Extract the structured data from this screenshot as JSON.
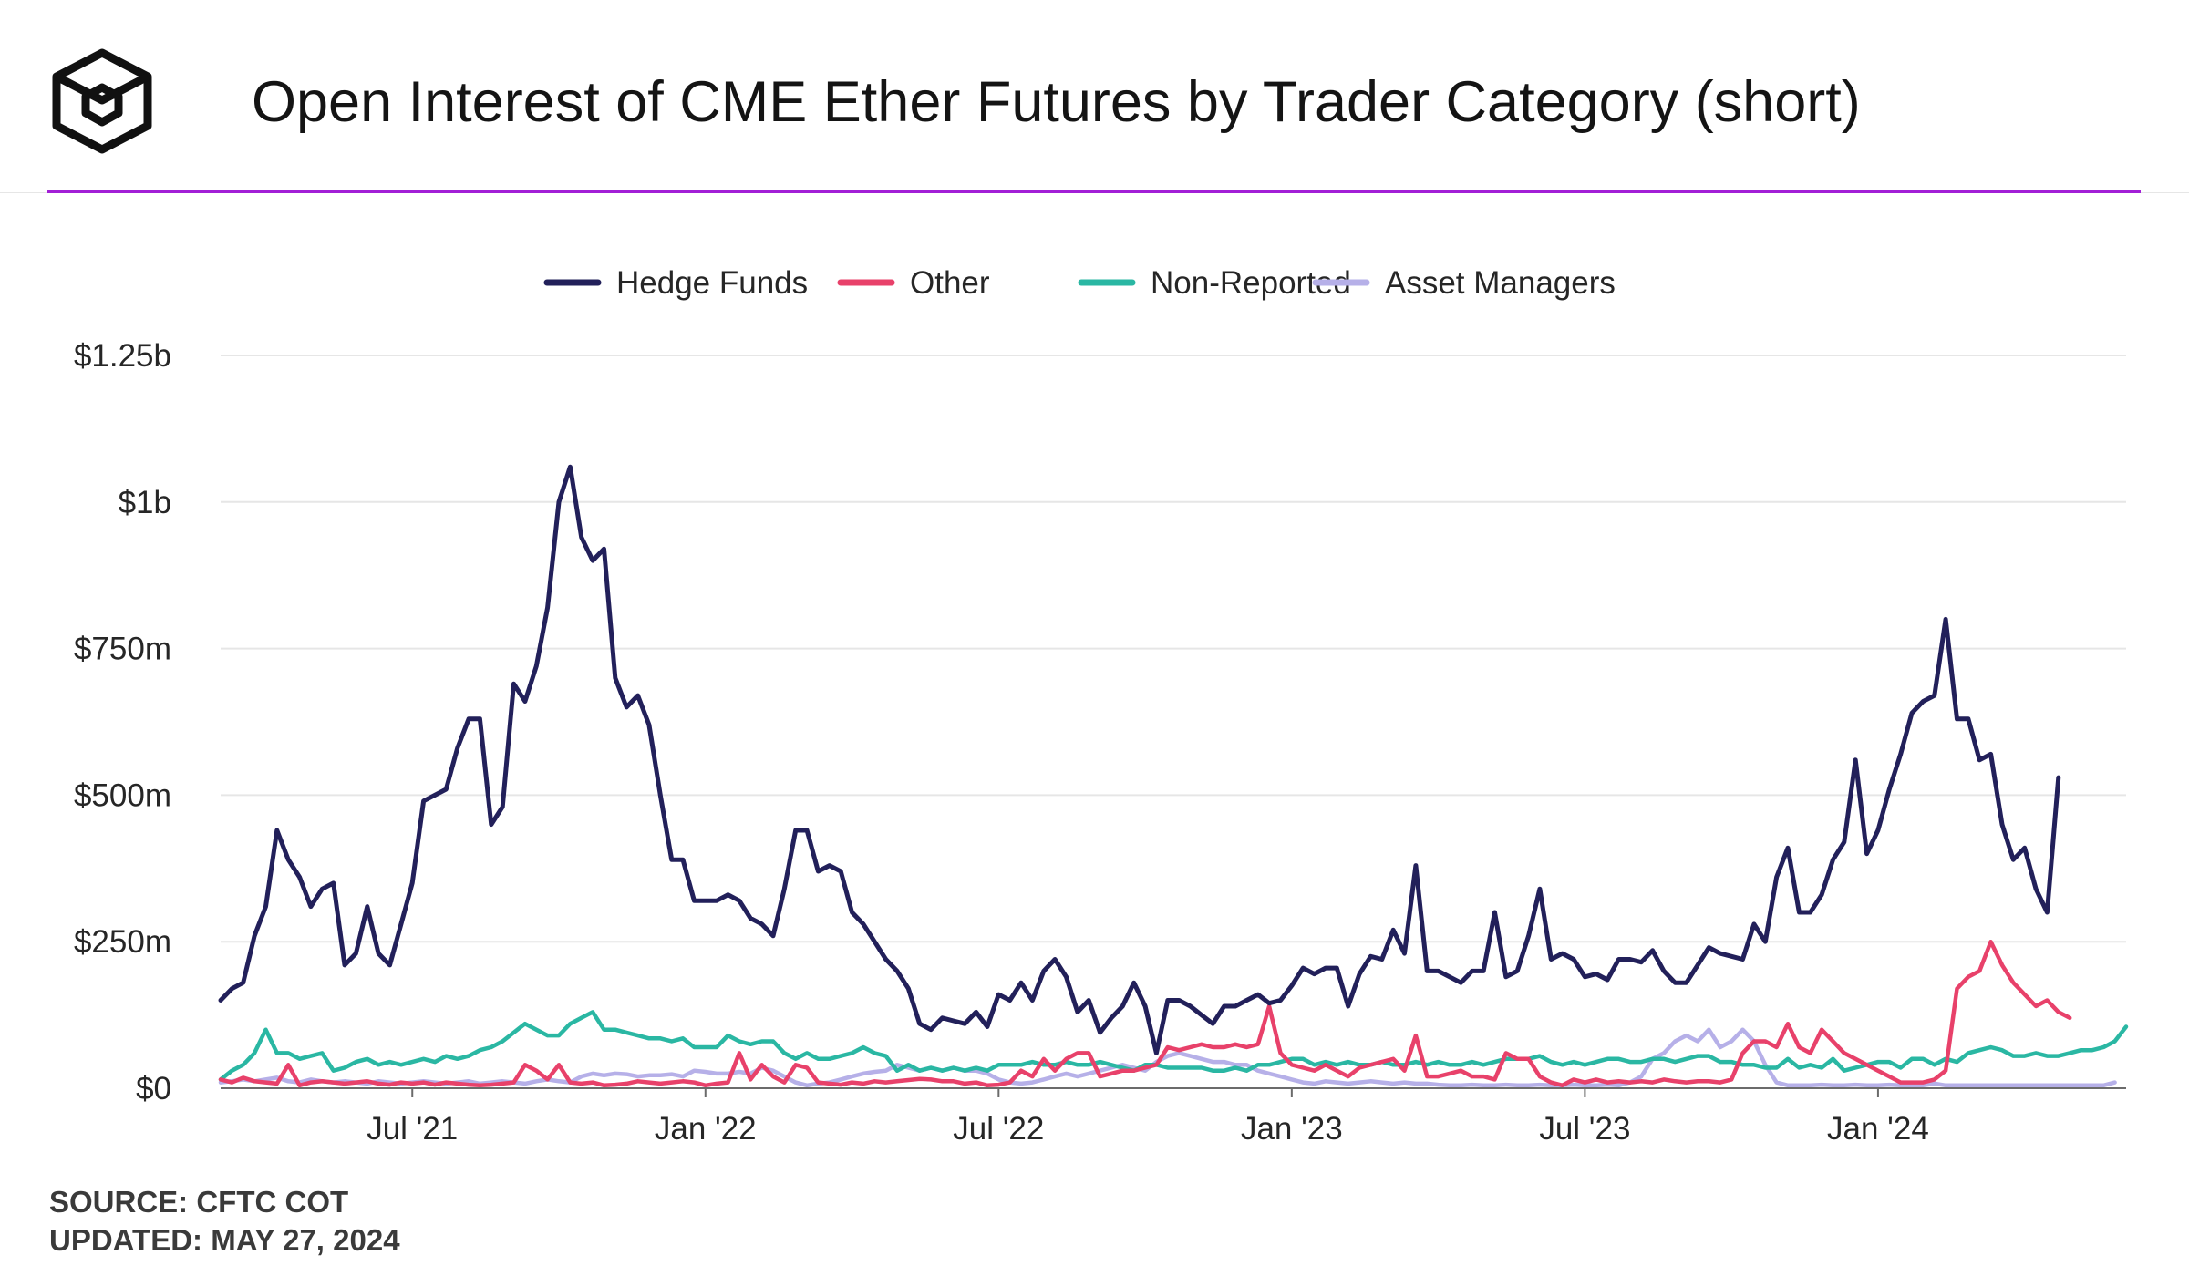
{
  "header": {
    "title": "Open Interest of CME Ether Futures by Trader Category (short)",
    "logo_icon": "the-block-cube-logo",
    "accent_color": "#a21fd6"
  },
  "footer": {
    "source": "SOURCE: CFTC COT",
    "updated": "UPDATED: MAY 27, 2024"
  },
  "chart_data": {
    "type": "line",
    "title": "Open Interest of CME Ether Futures by Trader Category (short)",
    "xlabel": "",
    "ylabel": "",
    "grid": true,
    "legend_position": "top-center",
    "x_start": "2021-03-05",
    "x_step_days": 7,
    "x_range": [
      0,
      169
    ],
    "ylim": [
      0,
      1250
    ],
    "y_unit": "$ millions",
    "y_ticks": [
      0,
      250,
      500,
      750,
      1000,
      1250
    ],
    "y_tick_labels": [
      "$0",
      "$250m",
      "$500m",
      "$750m",
      "$1b",
      "$1.25b"
    ],
    "x_ticks": [
      17,
      43,
      69,
      95,
      121,
      147
    ],
    "x_tick_labels": [
      "Jul '21",
      "Jan '22",
      "Jul '22",
      "Jan '23",
      "Jul '23",
      "Jan '24"
    ],
    "series": [
      {
        "name": "Hedge Funds",
        "color": "#22205a",
        "values": [
          150,
          170,
          180,
          260,
          310,
          440,
          390,
          360,
          310,
          340,
          350,
          210,
          230,
          310,
          230,
          210,
          280,
          350,
          490,
          500,
          510,
          580,
          630,
          630,
          450,
          480,
          690,
          660,
          720,
          820,
          1000,
          1060,
          940,
          900,
          920,
          700,
          650,
          670,
          620,
          500,
          390,
          390,
          320,
          320,
          320,
          330,
          320,
          290,
          280,
          260,
          340,
          440,
          440,
          370,
          380,
          370,
          300,
          280,
          250,
          220,
          200,
          170,
          110,
          100,
          120,
          115,
          110,
          130,
          105,
          160,
          150,
          180,
          150,
          200,
          220,
          190,
          130,
          150,
          95,
          120,
          140,
          180,
          140,
          60,
          150,
          150,
          140,
          125,
          110,
          140,
          140,
          150,
          160,
          145,
          150,
          175,
          205,
          195,
          205,
          205,
          140,
          195,
          225,
          220,
          270,
          230,
          380,
          200,
          200,
          190,
          180,
          200,
          200,
          300,
          190,
          200,
          260,
          340,
          220,
          230,
          220,
          190,
          195,
          185,
          220,
          220,
          215,
          235,
          200,
          180,
          180,
          210,
          240,
          230,
          225,
          220,
          280,
          250,
          360,
          410,
          300,
          300,
          330,
          390,
          420,
          560,
          400,
          440,
          510,
          570,
          640,
          660,
          670,
          800,
          630,
          630,
          560,
          570,
          450,
          390,
          410,
          340,
          300,
          530
        ],
        "note": "approximate reading, weekly from Mar 2021 to May 2024"
      },
      {
        "name": "Other",
        "color": "#e8416a",
        "values": [
          15,
          10,
          18,
          12,
          10,
          8,
          40,
          5,
          10,
          12,
          10,
          8,
          10,
          12,
          8,
          6,
          10,
          8,
          10,
          6,
          10,
          8,
          6,
          5,
          6,
          8,
          10,
          40,
          30,
          15,
          40,
          10,
          8,
          10,
          5,
          6,
          8,
          12,
          10,
          8,
          10,
          12,
          10,
          5,
          8,
          10,
          60,
          15,
          40,
          20,
          10,
          40,
          35,
          10,
          8,
          6,
          10,
          8,
          12,
          10,
          12,
          14,
          16,
          15,
          12,
          12,
          8,
          10,
          5,
          6,
          10,
          30,
          20,
          50,
          30,
          50,
          60,
          60,
          20,
          25,
          30,
          30,
          35,
          40,
          70,
          65,
          70,
          75,
          70,
          70,
          75,
          70,
          75,
          140,
          60,
          40,
          35,
          30,
          40,
          30,
          20,
          35,
          40,
          45,
          50,
          30,
          90,
          20,
          20,
          25,
          30,
          20,
          20,
          15,
          60,
          50,
          50,
          20,
          10,
          5,
          15,
          10,
          15,
          10,
          12,
          10,
          12,
          10,
          15,
          12,
          10,
          12,
          12,
          10,
          15,
          60,
          80,
          80,
          70,
          110,
          70,
          60,
          100,
          80,
          60,
          50,
          40,
          30,
          20,
          10,
          10,
          10,
          15,
          30,
          170,
          190,
          200,
          250,
          210,
          180,
          160,
          140,
          150,
          130,
          120
        ],
        "note": "approximate reading"
      },
      {
        "name": "Non-Reported",
        "color": "#2ab7a3",
        "values": [
          15,
          30,
          40,
          60,
          100,
          60,
          60,
          50,
          55,
          60,
          30,
          35,
          45,
          50,
          40,
          45,
          40,
          45,
          50,
          45,
          55,
          50,
          55,
          65,
          70,
          80,
          95,
          110,
          100,
          90,
          90,
          110,
          120,
          130,
          100,
          100,
          95,
          90,
          85,
          85,
          80,
          85,
          70,
          70,
          70,
          90,
          80,
          75,
          80,
          80,
          60,
          50,
          60,
          50,
          50,
          55,
          60,
          70,
          60,
          55,
          30,
          40,
          30,
          35,
          30,
          35,
          30,
          35,
          30,
          40,
          40,
          40,
          45,
          40,
          40,
          45,
          40,
          40,
          45,
          40,
          35,
          30,
          40,
          40,
          35,
          35,
          35,
          35,
          30,
          30,
          35,
          30,
          40,
          40,
          45,
          50,
          50,
          40,
          45,
          40,
          45,
          40,
          40,
          45,
          40,
          40,
          45,
          40,
          45,
          40,
          40,
          45,
          40,
          45,
          50,
          50,
          50,
          55,
          45,
          40,
          45,
          40,
          45,
          50,
          50,
          45,
          45,
          50,
          50,
          45,
          50,
          55,
          55,
          45,
          45,
          40,
          40,
          35,
          35,
          50,
          35,
          40,
          35,
          50,
          30,
          35,
          40,
          45,
          45,
          35,
          50,
          50,
          40,
          50,
          45,
          60,
          65,
          70,
          65,
          55,
          55,
          60,
          55,
          55,
          60,
          65,
          65,
          70,
          80,
          105
        ],
        "note": "approximate reading"
      },
      {
        "name": "Asset Managers",
        "color": "#b6b0e8",
        "values": [
          10,
          12,
          15,
          12,
          15,
          18,
          12,
          10,
          15,
          12,
          10,
          12,
          10,
          8,
          12,
          10,
          8,
          10,
          12,
          10,
          8,
          10,
          12,
          8,
          10,
          12,
          10,
          8,
          12,
          15,
          12,
          10,
          20,
          25,
          22,
          25,
          24,
          20,
          22,
          22,
          24,
          20,
          30,
          28,
          25,
          25,
          28,
          25,
          35,
          30,
          20,
          10,
          5,
          8,
          10,
          15,
          20,
          25,
          28,
          30,
          40,
          35,
          30,
          35,
          30,
          35,
          30,
          30,
          25,
          15,
          10,
          8,
          10,
          15,
          20,
          25,
          20,
          25,
          30,
          35,
          40,
          35,
          30,
          45,
          55,
          60,
          55,
          50,
          45,
          45,
          40,
          40,
          30,
          25,
          20,
          15,
          10,
          8,
          12,
          10,
          8,
          10,
          12,
          10,
          8,
          10,
          8,
          8,
          6,
          5,
          5,
          6,
          5,
          5,
          6,
          5,
          5,
          6,
          5,
          5,
          6,
          5,
          5,
          6,
          5,
          10,
          20,
          50,
          60,
          80,
          90,
          80,
          100,
          70,
          80,
          100,
          80,
          40,
          10,
          5,
          5,
          5,
          6,
          5,
          5,
          6,
          5,
          5,
          6,
          5,
          5,
          5,
          8,
          5,
          5,
          5,
          5,
          5,
          5,
          5,
          5,
          5,
          5,
          5,
          5,
          5,
          5,
          5,
          10
        ],
        "note": "approximate reading"
      }
    ]
  }
}
